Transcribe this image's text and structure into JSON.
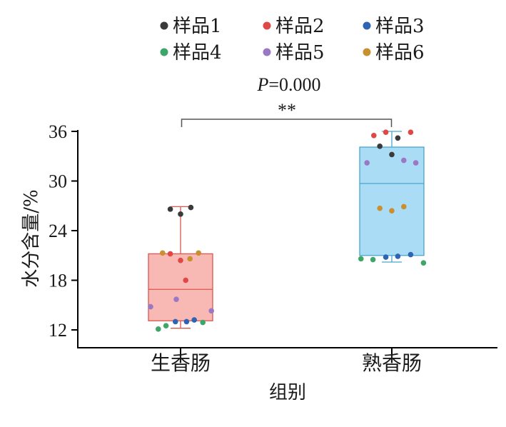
{
  "chart_data": {
    "type": "box",
    "categories": [
      "生香肠",
      "熟香肠"
    ],
    "xlabel": "组别",
    "ylabel": "水分含量/%",
    "ylim": [
      10,
      37
    ],
    "yticks": [
      12,
      18,
      24,
      30,
      36
    ],
    "legend": {
      "placement": "top",
      "items": [
        {
          "name": "样品1",
          "color": "#3a3a3a"
        },
        {
          "name": "样品2",
          "color": "#e04848"
        },
        {
          "name": "样品3",
          "color": "#2f64b4"
        },
        {
          "name": "样品4",
          "color": "#3fa66a"
        },
        {
          "name": "样品5",
          "color": "#9a78c4"
        },
        {
          "name": "样品6",
          "color": "#c89030"
        }
      ]
    },
    "annotation": {
      "p_label": "P",
      "p_value": "=0.000",
      "stars": "**"
    },
    "boxes": [
      {
        "category": "生香肠",
        "whisker_low": 12.2,
        "q1": 13.1,
        "median": 16.9,
        "q3": 21.2,
        "whisker_high": 26.9,
        "fill": "#f8b8b4",
        "stroke": "#d9584f"
      },
      {
        "category": "熟香肠",
        "whisker_low": 20.2,
        "q1": 21.0,
        "median": 29.7,
        "q3": 34.1,
        "whisker_high": 36.0,
        "fill": "#aadcf6",
        "stroke": "#4aa6cc"
      }
    ],
    "points": [
      {
        "category": "生香肠",
        "sample": "样品1",
        "jitter": -0.12,
        "y": 26.6
      },
      {
        "category": "生香肠",
        "sample": "样品1",
        "jitter": 0.0,
        "y": 26.0
      },
      {
        "category": "生香肠",
        "sample": "样品1",
        "jitter": 0.12,
        "y": 26.8
      },
      {
        "category": "生香肠",
        "sample": "样品2",
        "jitter": -0.12,
        "y": 21.2
      },
      {
        "category": "生香肠",
        "sample": "样品2",
        "jitter": 0.0,
        "y": 20.4
      },
      {
        "category": "生香肠",
        "sample": "样品2",
        "jitter": 0.06,
        "y": 18.0
      },
      {
        "category": "生香肠",
        "sample": "样品3",
        "jitter": -0.06,
        "y": 13.0
      },
      {
        "category": "生香肠",
        "sample": "样品3",
        "jitter": 0.07,
        "y": 13.0
      },
      {
        "category": "生香肠",
        "sample": "样品3",
        "jitter": 0.16,
        "y": 13.2
      },
      {
        "category": "生香肠",
        "sample": "样品4",
        "jitter": -0.26,
        "y": 12.1
      },
      {
        "category": "生香肠",
        "sample": "样品4",
        "jitter": -0.17,
        "y": 12.5
      },
      {
        "category": "生香肠",
        "sample": "样品4",
        "jitter": 0.26,
        "y": 12.9
      },
      {
        "category": "生香肠",
        "sample": "样品5",
        "jitter": -0.35,
        "y": 14.8
      },
      {
        "category": "生香肠",
        "sample": "样品5",
        "jitter": -0.05,
        "y": 15.7
      },
      {
        "category": "生香肠",
        "sample": "样品5",
        "jitter": 0.36,
        "y": 14.3
      },
      {
        "category": "生香肠",
        "sample": "样品6",
        "jitter": -0.21,
        "y": 21.3
      },
      {
        "category": "生香肠",
        "sample": "样品6",
        "jitter": 0.11,
        "y": 20.6
      },
      {
        "category": "生香肠",
        "sample": "样品6",
        "jitter": 0.21,
        "y": 21.3
      },
      {
        "category": "熟香肠",
        "sample": "样品1",
        "jitter": -0.14,
        "y": 34.2
      },
      {
        "category": "熟香肠",
        "sample": "样品1",
        "jitter": 0.0,
        "y": 33.2
      },
      {
        "category": "熟香肠",
        "sample": "样品1",
        "jitter": 0.07,
        "y": 35.2
      },
      {
        "category": "熟香肠",
        "sample": "样品2",
        "jitter": -0.21,
        "y": 35.5
      },
      {
        "category": "熟香肠",
        "sample": "样品2",
        "jitter": -0.07,
        "y": 35.9
      },
      {
        "category": "熟香肠",
        "sample": "样品2",
        "jitter": 0.22,
        "y": 35.9
      },
      {
        "category": "熟香肠",
        "sample": "样品3",
        "jitter": -0.07,
        "y": 20.8
      },
      {
        "category": "熟香肠",
        "sample": "样品3",
        "jitter": 0.07,
        "y": 20.9
      },
      {
        "category": "熟香肠",
        "sample": "样品3",
        "jitter": 0.22,
        "y": 21.1
      },
      {
        "category": "熟香肠",
        "sample": "样品4",
        "jitter": -0.36,
        "y": 20.6
      },
      {
        "category": "熟香肠",
        "sample": "样品4",
        "jitter": -0.22,
        "y": 20.5
      },
      {
        "category": "熟香肠",
        "sample": "样品4",
        "jitter": 0.37,
        "y": 20.1
      },
      {
        "category": "熟香肠",
        "sample": "样品5",
        "jitter": -0.29,
        "y": 32.2
      },
      {
        "category": "熟香肠",
        "sample": "样品5",
        "jitter": 0.14,
        "y": 32.5
      },
      {
        "category": "熟香肠",
        "sample": "样品5",
        "jitter": 0.28,
        "y": 32.2
      },
      {
        "category": "熟香肠",
        "sample": "样品6",
        "jitter": -0.14,
        "y": 26.7
      },
      {
        "category": "熟香肠",
        "sample": "样品6",
        "jitter": 0.0,
        "y": 26.4
      },
      {
        "category": "熟香肠",
        "sample": "样品6",
        "jitter": 0.14,
        "y": 26.9
      }
    ]
  }
}
